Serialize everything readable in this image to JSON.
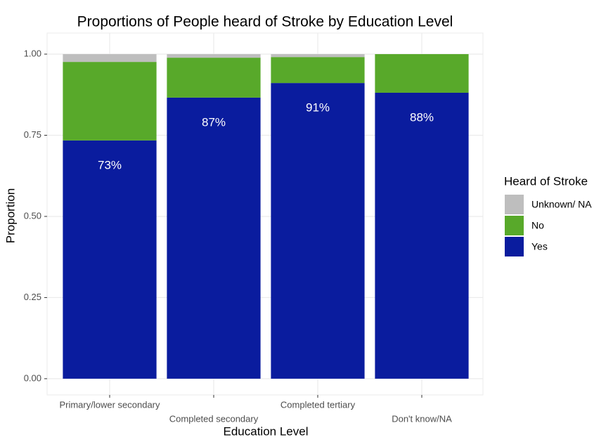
{
  "chart_data": {
    "type": "stacked_bar",
    "title": "Proportions of People heard of Stroke by Education Level",
    "x_label": "Education Level",
    "y_label": "Proportion",
    "legend_title": "Heard of Stroke",
    "categories": [
      "Primary/lower secondary",
      "Completed secondary",
      "Completed tertiary",
      "Don't know/NA"
    ],
    "series": [
      {
        "name": "Yes",
        "color": "#0a1c9e",
        "values": [
          0.734,
          0.866,
          0.911,
          0.881
        ],
        "value_labels": [
          "73%",
          "87%",
          "91%",
          "88%"
        ]
      },
      {
        "name": "No",
        "color": "#58a92a",
        "values": [
          0.242,
          0.123,
          0.08,
          0.119
        ]
      },
      {
        "name": "Unknown/ NA",
        "color": "#bebebe",
        "values": [
          0.024,
          0.011,
          0.009,
          0
        ]
      }
    ],
    "ylim": [
      -0.05,
      1.065
    ],
    "yticks": [
      {
        "value": 0,
        "label": "0.00"
      },
      {
        "value": 0.25,
        "label": "0.25"
      },
      {
        "value": 0.5,
        "label": "0.50"
      },
      {
        "value": 0.75,
        "label": "0.75"
      },
      {
        "value": 1,
        "label": "1.00"
      }
    ],
    "grid": true
  }
}
